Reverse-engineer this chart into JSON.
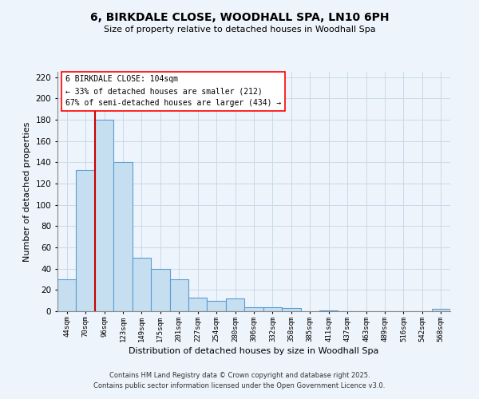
{
  "title": "6, BIRKDALE CLOSE, WOODHALL SPA, LN10 6PH",
  "subtitle": "Size of property relative to detached houses in Woodhall Spa",
  "xlabel": "Distribution of detached houses by size in Woodhall Spa",
  "ylabel": "Number of detached properties",
  "bin_labels": [
    "44sqm",
    "70sqm",
    "96sqm",
    "123sqm",
    "149sqm",
    "175sqm",
    "201sqm",
    "227sqm",
    "254sqm",
    "280sqm",
    "306sqm",
    "332sqm",
    "358sqm",
    "385sqm",
    "411sqm",
    "437sqm",
    "463sqm",
    "489sqm",
    "516sqm",
    "542sqm",
    "568sqm"
  ],
  "bar_heights": [
    30,
    133,
    180,
    140,
    50,
    40,
    30,
    13,
    10,
    12,
    4,
    4,
    3,
    0,
    1,
    0,
    0,
    0,
    0,
    0,
    2
  ],
  "bar_color": "#c6dff0",
  "bar_edge_color": "#5b9bd5",
  "vline_color": "#cc0000",
  "ylim": [
    0,
    225
  ],
  "yticks": [
    0,
    20,
    40,
    60,
    80,
    100,
    120,
    140,
    160,
    180,
    200,
    220
  ],
  "annotation_line1": "6 BIRKDALE CLOSE: 104sqm",
  "annotation_line2": "← 33% of detached houses are smaller (212)",
  "annotation_line3": "67% of semi-detached houses are larger (434) →",
  "footer_line1": "Contains HM Land Registry data © Crown copyright and database right 2025.",
  "footer_line2": "Contains public sector information licensed under the Open Government Licence v3.0.",
  "bg_color": "#eef4fb",
  "grid_color": "#c8daea"
}
